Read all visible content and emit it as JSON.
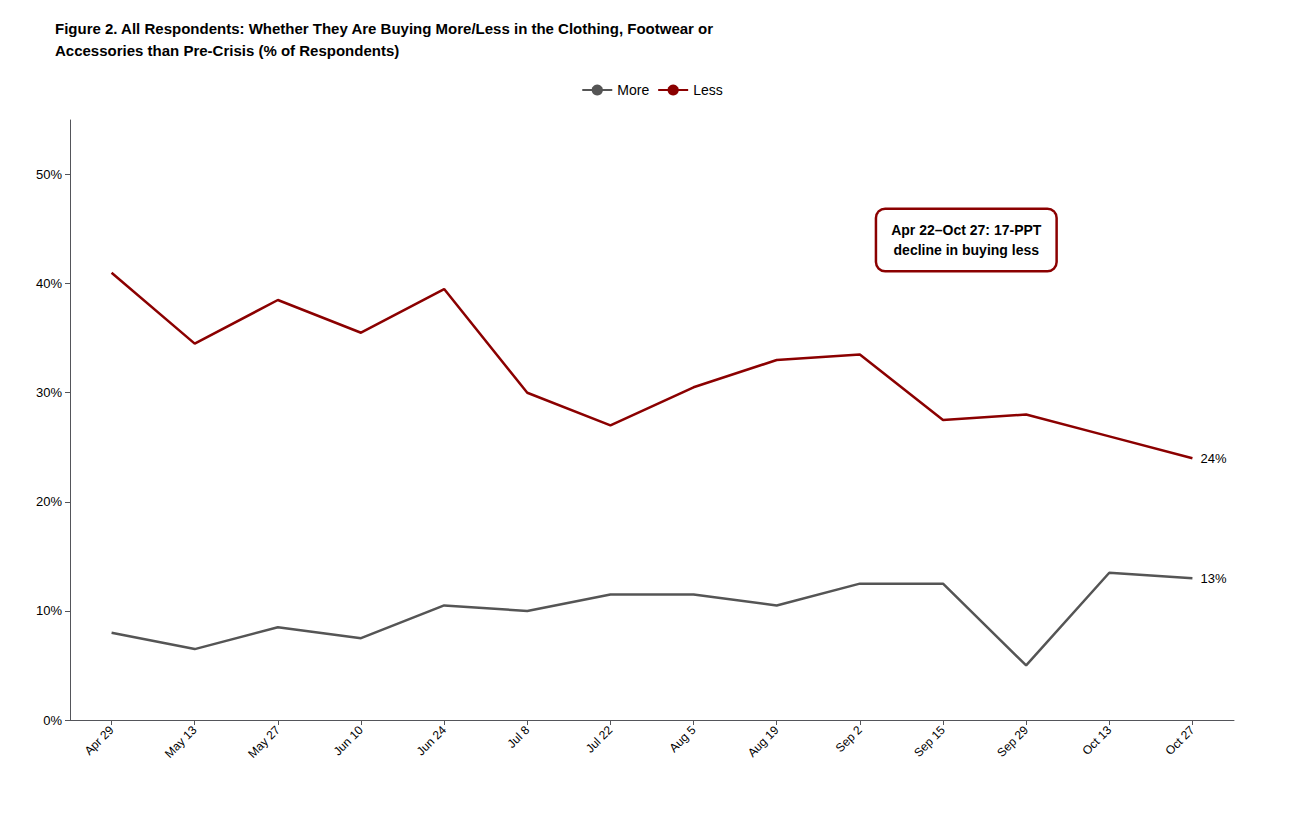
{
  "chart_data": {
    "type": "line",
    "title": "Figure 2. All Respondents: Whether They Are Buying More/Less in the Clothing, Footwear or\nAccessories than Pre-Crisis (% of Respondents)",
    "categories": [
      "Apr 29",
      "May 13",
      "May 27",
      "Jun 10",
      "Jun 24",
      "Jul 8",
      "Jul 22",
      "Aug 5",
      "Aug 19",
      "Sep 2",
      "Sep 15",
      "Sep 29",
      "Oct 13",
      "Oct 27"
    ],
    "series": [
      {
        "name": "More",
        "color": "#555555",
        "values": [
          0.08,
          0.065,
          0.085,
          0.075,
          0.105,
          0.1,
          0.115,
          0.115,
          0.105,
          0.125,
          0.125,
          0.05,
          0.135,
          0.13
        ],
        "end_label": "13%"
      },
      {
        "name": "Less",
        "color": "#8B0000",
        "values": [
          0.41,
          0.345,
          0.385,
          0.355,
          0.395,
          0.3,
          0.27,
          0.305,
          0.33,
          0.335,
          0.275,
          0.28,
          0.26,
          0.24
        ],
        "end_label": "24%"
      }
    ],
    "ylim": [
      0,
      0.55
    ],
    "yticks": [
      {
        "value": 0,
        "label": "0%"
      },
      {
        "value": 0.1,
        "label": "10%"
      },
      {
        "value": 0.2,
        "label": "20%"
      },
      {
        "value": 0.3,
        "label": "30%"
      },
      {
        "value": 0.4,
        "label": "40%"
      },
      {
        "value": 0.5,
        "label": "50%"
      }
    ],
    "grid": false,
    "legend": "top",
    "annotations": [
      {
        "text": "Apr 22–Oct 27: 17-PPT\ndecline in buying less",
        "color": "#8B0000"
      }
    ]
  }
}
